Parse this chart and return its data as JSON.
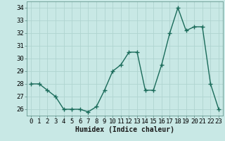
{
  "x": [
    0,
    1,
    2,
    3,
    4,
    5,
    6,
    7,
    8,
    9,
    10,
    11,
    12,
    13,
    14,
    15,
    16,
    17,
    18,
    19,
    20,
    21,
    22,
    23
  ],
  "y": [
    28,
    28,
    27.5,
    27,
    26,
    26,
    26,
    25.8,
    26.2,
    27.5,
    29,
    29.5,
    30.5,
    30.5,
    27.5,
    27.5,
    29.5,
    32,
    34,
    32.2,
    32.5,
    32.5,
    28,
    26
  ],
  "line_color": "#1a6b5a",
  "marker": "+",
  "marker_color": "#1a6b5a",
  "bg_color": "#c8e8e5",
  "grid_color": "#b0d4d0",
  "xlabel": "Humidex (Indice chaleur)",
  "xlabel_fontsize": 7,
  "ylim": [
    25.5,
    34.5
  ],
  "xlim": [
    -0.5,
    23.5
  ],
  "yticks": [
    26,
    27,
    28,
    29,
    30,
    31,
    32,
    33,
    34
  ],
  "xticks": [
    0,
    1,
    2,
    3,
    4,
    5,
    6,
    7,
    8,
    9,
    10,
    11,
    12,
    13,
    14,
    15,
    16,
    17,
    18,
    19,
    20,
    21,
    22,
    23
  ],
  "tick_fontsize": 6.5,
  "line_width": 1.0,
  "marker_size": 4
}
